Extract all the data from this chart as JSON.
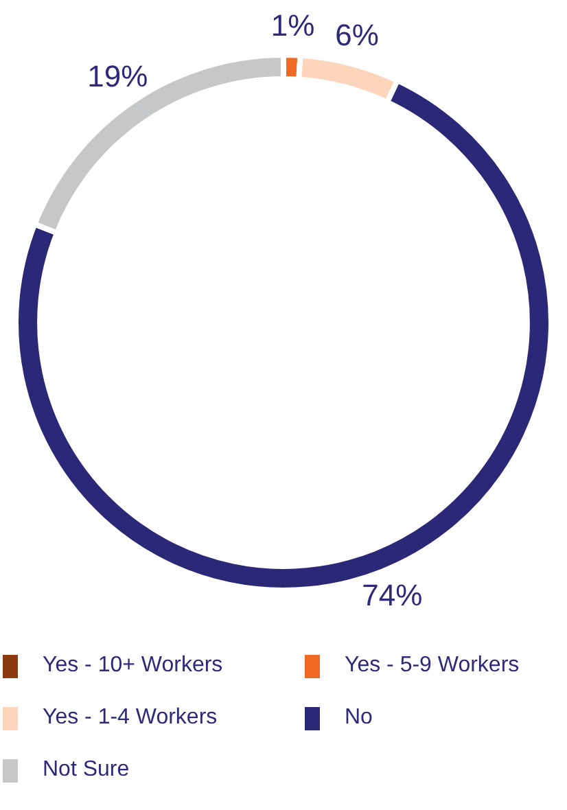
{
  "chart_data": {
    "type": "donut",
    "categories": [
      "Yes - 10+ Workers",
      "Yes - 5-9 Workers",
      "Yes - 1-4 Workers",
      "No",
      "Not Sure"
    ],
    "values": [
      0,
      1,
      6,
      74,
      19
    ],
    "colors": [
      "#8b3a0e",
      "#ee6a24",
      "#fdd5bd",
      "#2b2878",
      "#c6c7c9"
    ],
    "value_labels": [
      null,
      "1%",
      "6%",
      "74%",
      "19%"
    ],
    "legend": "bottom"
  }
}
